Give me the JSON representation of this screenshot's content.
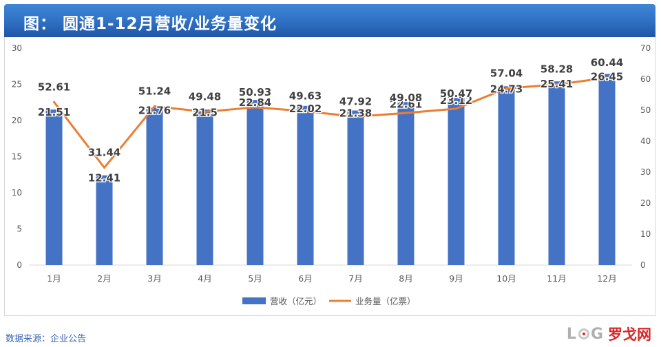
{
  "header": {
    "title": "图： 圆通1-12月营收/业务量变化"
  },
  "footer": {
    "source": "数据来源：企业公告",
    "logo_latin_left": "L",
    "logo_latin_right": "G",
    "logo_cn": "罗戈网"
  },
  "colors": {
    "bar": "#4472c4",
    "line": "#ed7d31",
    "title_bg": "#2f6fc2",
    "source_text": "#3b66b3",
    "logo_red": "#d62828"
  },
  "chart_data": {
    "type": "bar",
    "categories": [
      "1月",
      "2月",
      "3月",
      "4月",
      "5月",
      "6月",
      "7月",
      "8月",
      "9月",
      "10月",
      "11月",
      "12月"
    ],
    "series": [
      {
        "name": "营收（亿元）",
        "type": "bar",
        "axis": "left",
        "values": [
          21.51,
          12.41,
          21.76,
          21.5,
          22.84,
          22.02,
          21.38,
          22.61,
          23.12,
          24.73,
          25.41,
          26.45
        ],
        "labels": [
          "21.51",
          "12.41",
          "21.76",
          "21.5",
          "22.84",
          "22.02",
          "21.38",
          "22.61",
          "23.12",
          "24.73",
          "25.41",
          "26.45"
        ]
      },
      {
        "name": "业务量（亿票）",
        "type": "line",
        "axis": "right",
        "values": [
          52.61,
          31.44,
          51.24,
          49.48,
          50.93,
          49.63,
          47.92,
          49.08,
          50.47,
          57.04,
          58.28,
          60.44
        ],
        "labels": [
          "52.61",
          "31.44",
          "51.24",
          "49.48",
          "50.93",
          "49.63",
          "47.92",
          "49.08",
          "50.47",
          "57.04",
          "58.28",
          "60.44"
        ]
      }
    ],
    "y_left": {
      "min": 0,
      "max": 30,
      "ticks": [
        "0",
        "5",
        "10",
        "15",
        "20",
        "25",
        "30"
      ]
    },
    "y_right": {
      "min": 0,
      "max": 70,
      "ticks": [
        "0",
        "10",
        "20",
        "30",
        "40",
        "50",
        "60",
        "70"
      ]
    },
    "grid": false,
    "legend": "bottom"
  }
}
